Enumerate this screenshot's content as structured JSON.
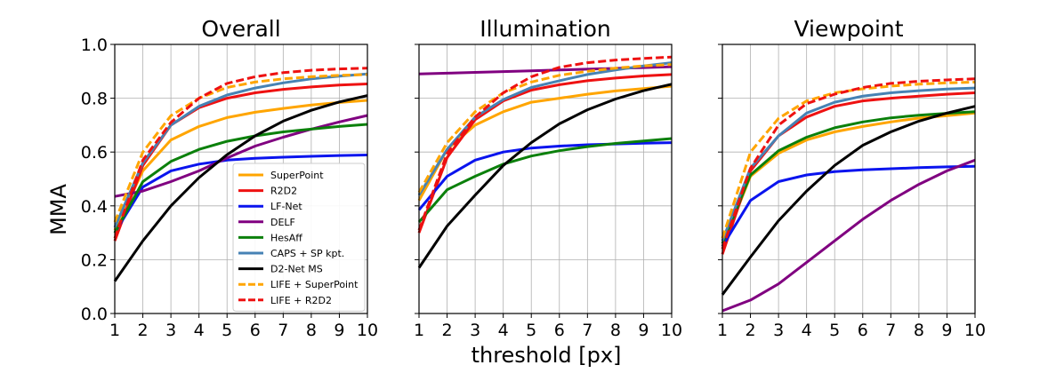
{
  "figure": {
    "ylabel": "MMA",
    "xlabel": "threshold [px]"
  },
  "legend": {
    "entries": [
      {
        "name": "SuperPoint",
        "color": "#FFA500",
        "dashed": false
      },
      {
        "name": "R2D2",
        "color": "#EE1111",
        "dashed": false
      },
      {
        "name": "LF-Net",
        "color": "#0A14EE",
        "dashed": false
      },
      {
        "name": "DELF",
        "color": "#800080",
        "dashed": false
      },
      {
        "name": "HesAff",
        "color": "#0B800B",
        "dashed": false
      },
      {
        "name": "CAPS + SP kpt.",
        "color": "#4682B4",
        "dashed": false
      },
      {
        "name": "D2-Net MS",
        "color": "#000000",
        "dashed": false
      },
      {
        "name": "LIFE + SuperPoint",
        "color": "#FFA500",
        "dashed": true
      },
      {
        "name": "LIFE + R2D2",
        "color": "#EE1111",
        "dashed": true
      }
    ]
  },
  "chart_data": [
    {
      "type": "line",
      "title": "Overall",
      "x": [
        1,
        2,
        3,
        4,
        5,
        6,
        7,
        8,
        9,
        10
      ],
      "xlim": [
        1,
        10
      ],
      "ylim": [
        0,
        1
      ],
      "xticks": [
        "1",
        "2",
        "3",
        "4",
        "5",
        "6",
        "7",
        "8",
        "9",
        "10"
      ],
      "yticks": [
        "0.0",
        "0.2",
        "0.4",
        "0.6",
        "0.8",
        "1.0"
      ],
      "grid": true,
      "legend_position": "lower-right",
      "series": [
        {
          "name": "SuperPoint",
          "values": [
            0.31,
            0.53,
            0.645,
            0.695,
            0.728,
            0.748,
            0.762,
            0.775,
            0.784,
            0.792
          ]
        },
        {
          "name": "R2D2",
          "values": [
            0.27,
            0.55,
            0.7,
            0.765,
            0.8,
            0.82,
            0.833,
            0.842,
            0.849,
            0.853
          ]
        },
        {
          "name": "LF-Net",
          "values": [
            0.3,
            0.47,
            0.53,
            0.555,
            0.57,
            0.577,
            0.581,
            0.584,
            0.587,
            0.589
          ]
        },
        {
          "name": "DELF",
          "values": [
            0.435,
            0.455,
            0.49,
            0.53,
            0.578,
            0.622,
            0.655,
            0.685,
            0.712,
            0.736
          ]
        },
        {
          "name": "HesAff",
          "values": [
            0.3,
            0.49,
            0.565,
            0.61,
            0.64,
            0.66,
            0.675,
            0.685,
            0.695,
            0.703
          ]
        },
        {
          "name": "CAPS + SP kpt.",
          "values": [
            0.32,
            0.56,
            0.7,
            0.77,
            0.812,
            0.838,
            0.857,
            0.872,
            0.882,
            0.89
          ]
        },
        {
          "name": "D2-Net MS",
          "values": [
            0.12,
            0.27,
            0.4,
            0.505,
            0.59,
            0.66,
            0.715,
            0.755,
            0.786,
            0.81
          ]
        },
        {
          "name": "LIFE + SuperPoint",
          "values": [
            0.34,
            0.6,
            0.735,
            0.8,
            0.84,
            0.86,
            0.872,
            0.88,
            0.885,
            0.888
          ]
        },
        {
          "name": "LIFE + R2D2",
          "values": [
            0.28,
            0.57,
            0.71,
            0.8,
            0.855,
            0.88,
            0.895,
            0.904,
            0.909,
            0.912
          ]
        }
      ]
    },
    {
      "type": "line",
      "title": "Illumination",
      "x": [
        1,
        2,
        3,
        4,
        5,
        6,
        7,
        8,
        9,
        10
      ],
      "xlim": [
        1,
        10
      ],
      "ylim": [
        0,
        1
      ],
      "xticks": [
        "1",
        "2",
        "3",
        "4",
        "5",
        "6",
        "7",
        "8",
        "9",
        "10"
      ],
      "yticks": [
        "0.0",
        "0.2",
        "0.4",
        "0.6",
        "0.8",
        "1.0"
      ],
      "grid": true,
      "series": [
        {
          "name": "SuperPoint",
          "values": [
            0.42,
            0.61,
            0.7,
            0.75,
            0.785,
            0.8,
            0.815,
            0.827,
            0.836,
            0.845
          ]
        },
        {
          "name": "R2D2",
          "values": [
            0.3,
            0.58,
            0.72,
            0.79,
            0.83,
            0.85,
            0.865,
            0.875,
            0.883,
            0.888
          ]
        },
        {
          "name": "LF-Net",
          "values": [
            0.385,
            0.51,
            0.57,
            0.6,
            0.615,
            0.622,
            0.627,
            0.63,
            0.633,
            0.635
          ]
        },
        {
          "name": "DELF",
          "values": [
            0.89,
            0.893,
            0.896,
            0.899,
            0.902,
            0.905,
            0.908,
            0.911,
            0.914,
            0.917
          ]
        },
        {
          "name": "HesAff",
          "values": [
            0.34,
            0.46,
            0.51,
            0.555,
            0.585,
            0.605,
            0.62,
            0.632,
            0.641,
            0.65
          ]
        },
        {
          "name": "CAPS + SP kpt.",
          "values": [
            0.44,
            0.61,
            0.73,
            0.795,
            0.84,
            0.865,
            0.888,
            0.905,
            0.92,
            0.932
          ]
        },
        {
          "name": "D2-Net MS",
          "values": [
            0.17,
            0.325,
            0.44,
            0.55,
            0.635,
            0.705,
            0.757,
            0.797,
            0.828,
            0.852
          ]
        },
        {
          "name": "LIFE + SuperPoint",
          "values": [
            0.45,
            0.635,
            0.75,
            0.82,
            0.86,
            0.885,
            0.9,
            0.912,
            0.92,
            0.925
          ]
        },
        {
          "name": "LIFE + R2D2",
          "values": [
            0.31,
            0.595,
            0.73,
            0.82,
            0.88,
            0.915,
            0.932,
            0.942,
            0.948,
            0.953
          ]
        }
      ]
    },
    {
      "type": "line",
      "title": "Viewpoint",
      "x": [
        1,
        2,
        3,
        4,
        5,
        6,
        7,
        8,
        9,
        10
      ],
      "xlim": [
        1,
        10
      ],
      "ylim": [
        0,
        1
      ],
      "xticks": [
        "1",
        "2",
        "3",
        "4",
        "5",
        "6",
        "7",
        "8",
        "9",
        "10"
      ],
      "yticks": [
        "0.0",
        "0.2",
        "0.4",
        "0.6",
        "0.8",
        "1.0"
      ],
      "grid": true,
      "series": [
        {
          "name": "SuperPoint",
          "values": [
            0.25,
            0.51,
            0.595,
            0.645,
            0.675,
            0.695,
            0.712,
            0.726,
            0.735,
            0.745
          ]
        },
        {
          "name": "R2D2",
          "values": [
            0.22,
            0.53,
            0.66,
            0.73,
            0.77,
            0.79,
            0.8,
            0.808,
            0.815,
            0.82
          ]
        },
        {
          "name": "LF-Net",
          "values": [
            0.25,
            0.42,
            0.49,
            0.515,
            0.527,
            0.534,
            0.538,
            0.542,
            0.545,
            0.547
          ]
        },
        {
          "name": "DELF",
          "values": [
            0.01,
            0.05,
            0.11,
            0.19,
            0.27,
            0.35,
            0.42,
            0.48,
            0.53,
            0.57
          ]
        },
        {
          "name": "HesAff",
          "values": [
            0.26,
            0.515,
            0.605,
            0.655,
            0.69,
            0.712,
            0.727,
            0.737,
            0.744,
            0.75
          ]
        },
        {
          "name": "CAPS + SP kpt.",
          "values": [
            0.27,
            0.54,
            0.66,
            0.745,
            0.785,
            0.808,
            0.82,
            0.828,
            0.834,
            0.838
          ]
        },
        {
          "name": "D2-Net MS",
          "values": [
            0.07,
            0.21,
            0.345,
            0.455,
            0.55,
            0.625,
            0.675,
            0.715,
            0.745,
            0.77
          ]
        },
        {
          "name": "LIFE + SuperPoint",
          "values": [
            0.28,
            0.6,
            0.725,
            0.79,
            0.82,
            0.835,
            0.845,
            0.852,
            0.857,
            0.86
          ]
        },
        {
          "name": "LIFE + R2D2",
          "values": [
            0.24,
            0.54,
            0.7,
            0.78,
            0.815,
            0.84,
            0.855,
            0.863,
            0.868,
            0.872
          ]
        }
      ]
    }
  ]
}
